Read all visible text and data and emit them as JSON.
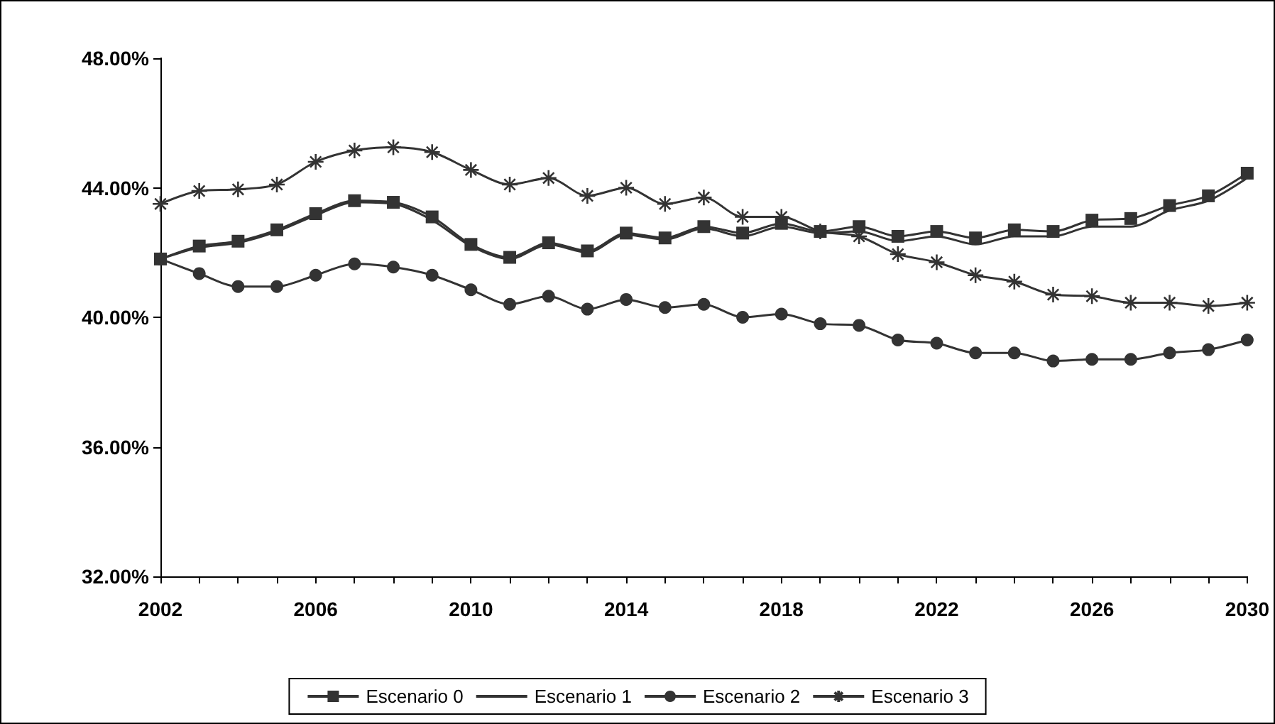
{
  "chart_data": {
    "type": "line",
    "x": [
      2002,
      2003,
      2004,
      2005,
      2006,
      2007,
      2008,
      2009,
      2010,
      2011,
      2012,
      2013,
      2014,
      2015,
      2016,
      2017,
      2018,
      2019,
      2020,
      2021,
      2022,
      2023,
      2024,
      2025,
      2026,
      2027,
      2028,
      2029,
      2030
    ],
    "series": [
      {
        "name": "Escenario 0",
        "color": "#333333",
        "marker": "square",
        "values": [
          41.8,
          42.2,
          42.35,
          42.7,
          43.2,
          43.6,
          43.55,
          43.1,
          42.25,
          41.85,
          42.3,
          42.05,
          42.6,
          42.45,
          42.8,
          42.6,
          42.9,
          42.65,
          42.8,
          42.5,
          42.65,
          42.45,
          42.7,
          42.65,
          43.0,
          43.05,
          43.45,
          43.75,
          44.45
        ]
      },
      {
        "name": "Escenario 1",
        "color": "#333333",
        "marker": "none",
        "values": [
          41.8,
          42.15,
          42.3,
          42.65,
          43.15,
          43.55,
          43.5,
          43.0,
          42.2,
          41.8,
          42.25,
          42.0,
          42.55,
          42.4,
          42.75,
          42.5,
          42.8,
          42.6,
          42.65,
          42.35,
          42.5,
          42.25,
          42.5,
          42.5,
          42.8,
          42.8,
          43.3,
          43.6,
          44.3
        ]
      },
      {
        "name": "Escenario 2",
        "color": "#333333",
        "marker": "circle",
        "values": [
          41.8,
          41.35,
          40.95,
          40.95,
          41.3,
          41.65,
          41.55,
          41.3,
          40.85,
          40.4,
          40.65,
          40.25,
          40.55,
          40.3,
          40.4,
          40.0,
          40.1,
          39.8,
          39.75,
          39.3,
          39.2,
          38.9,
          38.9,
          38.65,
          38.7,
          38.7,
          38.9,
          39.0,
          39.3
        ]
      },
      {
        "name": "Escenario 3",
        "color": "#333333",
        "marker": "cross",
        "values": [
          43.5,
          43.9,
          43.95,
          44.1,
          44.8,
          45.15,
          45.25,
          45.1,
          44.55,
          44.1,
          44.3,
          43.75,
          44.0,
          43.5,
          43.7,
          43.1,
          43.1,
          42.65,
          42.5,
          41.95,
          41.7,
          41.3,
          41.1,
          40.7,
          40.65,
          40.45,
          40.45,
          40.35,
          40.45
        ]
      }
    ],
    "xlim": [
      2002,
      2030
    ],
    "xticks": [
      2002,
      {
        "value": 2003,
        "label": null
      },
      {
        "value": 2004,
        "label": null
      },
      {
        "value": 2005,
        "label": null
      },
      2006,
      {
        "value": 2007,
        "label": null
      },
      {
        "value": 2008,
        "label": null
      },
      {
        "value": 2009,
        "label": null
      },
      2010,
      {
        "value": 2011,
        "label": null
      },
      {
        "value": 2012,
        "label": null
      },
      {
        "value": 2013,
        "label": null
      },
      2014,
      {
        "value": 2015,
        "label": null
      },
      {
        "value": 2016,
        "label": null
      },
      {
        "value": 2017,
        "label": null
      },
      2018,
      {
        "value": 2019,
        "label": null
      },
      {
        "value": 2020,
        "label": null
      },
      {
        "value": 2021,
        "label": null
      },
      2022,
      {
        "value": 2023,
        "label": null
      },
      {
        "value": 2024,
        "label": null
      },
      {
        "value": 2025,
        "label": null
      },
      2026,
      {
        "value": 2027,
        "label": null
      },
      {
        "value": 2028,
        "label": null
      },
      {
        "value": 2029,
        "label": null
      },
      2030
    ],
    "ylim": [
      32,
      48
    ],
    "yticks": [
      {
        "value": 32,
        "label": "32.00%"
      },
      {
        "value": 36,
        "label": "36.00%"
      },
      {
        "value": 40,
        "label": "40.00%"
      },
      {
        "value": 44,
        "label": "44.00%"
      },
      {
        "value": 48,
        "label": "48.00%"
      }
    ],
    "grid": false,
    "legend": "bottom",
    "line_style": "solid"
  }
}
